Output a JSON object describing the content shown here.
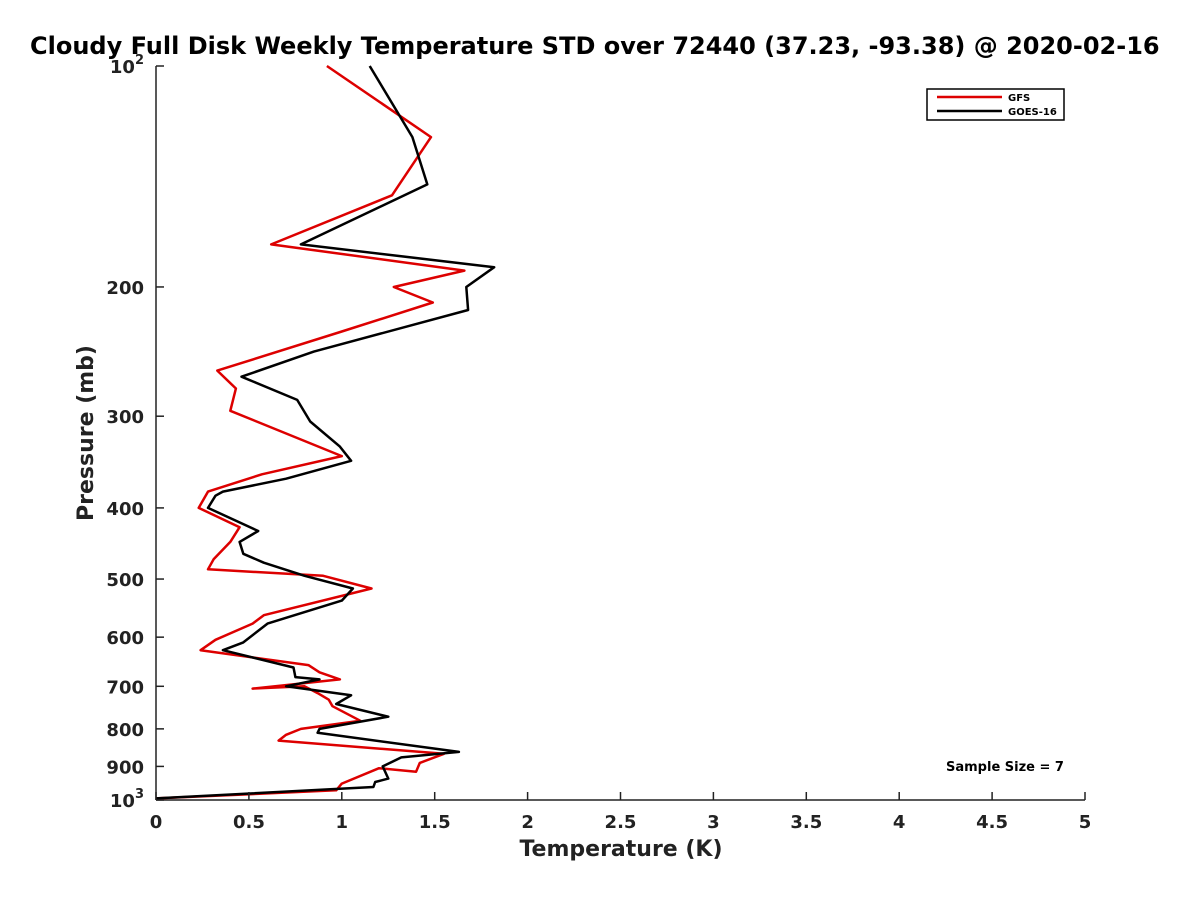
{
  "chart_data": {
    "type": "line",
    "title": "Cloudy Full Disk Weekly Temperature STD over 72440 (37.23, -93.38) @ 2020-02-16",
    "xlabel": "Temperature (K)",
    "ylabel": "Pressure (mb)",
    "xlim": [
      0,
      5
    ],
    "ylim": [
      1000,
      100
    ],
    "yscale": "log",
    "x_ticks": [
      0,
      0.5,
      1,
      1.5,
      2,
      2.5,
      3,
      3.5,
      4,
      4.5,
      5
    ],
    "x_tick_labels": [
      "0",
      "0.5",
      "1",
      "1.5",
      "2",
      "2.5",
      "3",
      "3.5",
      "4",
      "4.5",
      "5"
    ],
    "y_ticks": [
      {
        "value": 100,
        "label": "10",
        "sup": "2"
      },
      {
        "value": 200,
        "label": "200",
        "sup": ""
      },
      {
        "value": 300,
        "label": "300",
        "sup": ""
      },
      {
        "value": 400,
        "label": "400",
        "sup": ""
      },
      {
        "value": 500,
        "label": "500",
        "sup": ""
      },
      {
        "value": 600,
        "label": "600",
        "sup": ""
      },
      {
        "value": 700,
        "label": "700",
        "sup": ""
      },
      {
        "value": 800,
        "label": "800",
        "sup": ""
      },
      {
        "value": 900,
        "label": "900",
        "sup": ""
      },
      {
        "value": 1000,
        "label": "10",
        "sup": "3"
      }
    ],
    "grid": false,
    "legend_position": "top-right",
    "annotation": "Sample Size = 7",
    "series": [
      {
        "name": "GFS",
        "color": "#dd0000",
        "points": [
          [
            0.92,
            100
          ],
          [
            1.48,
            125
          ],
          [
            1.27,
            150
          ],
          [
            0.62,
            175
          ],
          [
            1.66,
            190
          ],
          [
            1.28,
            200
          ],
          [
            1.49,
            210
          ],
          [
            1.0,
            230
          ],
          [
            0.33,
            260
          ],
          [
            0.43,
            275
          ],
          [
            0.4,
            295
          ],
          [
            1.0,
            340
          ],
          [
            0.57,
            360
          ],
          [
            0.28,
            380
          ],
          [
            0.23,
            400
          ],
          [
            0.45,
            425
          ],
          [
            0.4,
            445
          ],
          [
            0.31,
            470
          ],
          [
            0.28,
            485
          ],
          [
            0.9,
            495
          ],
          [
            1.16,
            515
          ],
          [
            0.58,
            560
          ],
          [
            0.52,
            575
          ],
          [
            0.32,
            605
          ],
          [
            0.24,
            625
          ],
          [
            0.82,
            655
          ],
          [
            0.88,
            670
          ],
          [
            0.99,
            685
          ],
          [
            0.52,
            705
          ],
          [
            0.8,
            700
          ],
          [
            0.87,
            715
          ],
          [
            0.93,
            730
          ],
          [
            0.95,
            745
          ],
          [
            1.1,
            780
          ],
          [
            0.78,
            800
          ],
          [
            0.7,
            815
          ],
          [
            0.66,
            830
          ],
          [
            1.55,
            865
          ],
          [
            1.42,
            890
          ],
          [
            1.4,
            915
          ],
          [
            1.2,
            905
          ],
          [
            1.0,
            950
          ],
          [
            0.97,
            970
          ],
          [
            0.0,
            995
          ]
        ]
      },
      {
        "name": "GOES-16",
        "color": "#000000",
        "points": [
          [
            1.15,
            100
          ],
          [
            1.38,
            125
          ],
          [
            1.46,
            145
          ],
          [
            0.78,
            175
          ],
          [
            1.82,
            188
          ],
          [
            1.67,
            200
          ],
          [
            1.68,
            215
          ],
          [
            0.85,
            245
          ],
          [
            0.46,
            265
          ],
          [
            0.76,
            285
          ],
          [
            0.83,
            305
          ],
          [
            0.99,
            330
          ],
          [
            1.05,
            345
          ],
          [
            0.7,
            365
          ],
          [
            0.36,
            380
          ],
          [
            0.32,
            385
          ],
          [
            0.28,
            400
          ],
          [
            0.55,
            430
          ],
          [
            0.45,
            445
          ],
          [
            0.47,
            462
          ],
          [
            0.58,
            475
          ],
          [
            0.8,
            495
          ],
          [
            1.06,
            515
          ],
          [
            1.0,
            535
          ],
          [
            0.6,
            575
          ],
          [
            0.47,
            610
          ],
          [
            0.36,
            625
          ],
          [
            0.74,
            660
          ],
          [
            0.75,
            680
          ],
          [
            0.88,
            685
          ],
          [
            0.7,
            700
          ],
          [
            1.05,
            720
          ],
          [
            0.97,
            740
          ],
          [
            1.25,
            770
          ],
          [
            0.88,
            800
          ],
          [
            0.87,
            810
          ],
          [
            1.63,
            860
          ],
          [
            1.32,
            875
          ],
          [
            1.22,
            900
          ],
          [
            1.25,
            935
          ],
          [
            1.18,
            945
          ],
          [
            1.17,
            960
          ],
          [
            0.0,
            995
          ]
        ]
      }
    ]
  }
}
